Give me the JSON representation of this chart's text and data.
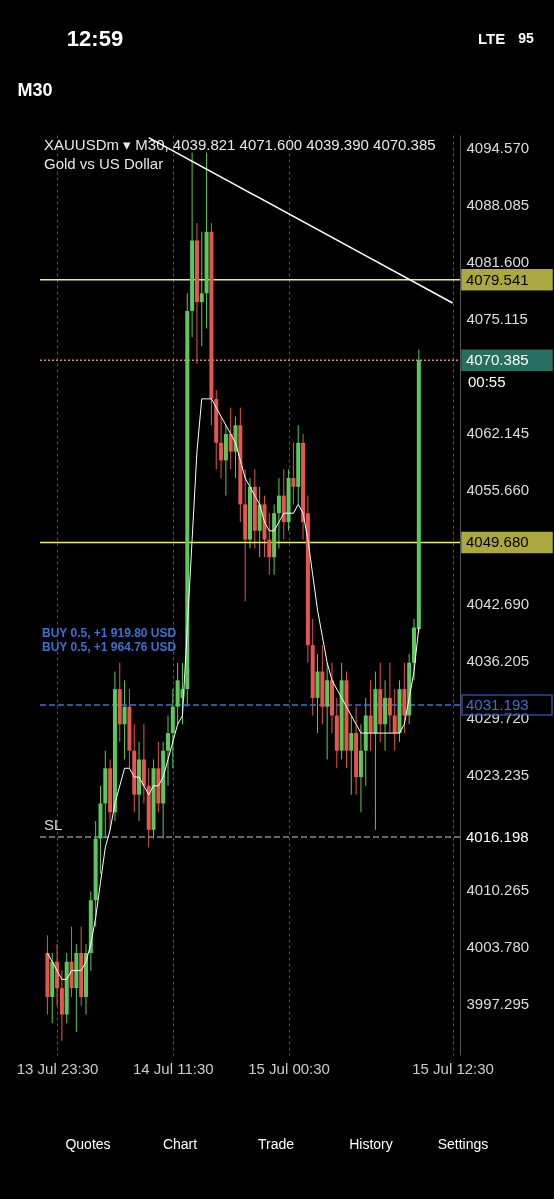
{
  "chart_data": {
    "type": "candlestick",
    "title": "XAUUSDm ▾ M30, 4039.821 4071.600 4039.390 4070.385",
    "subtitle": "Gold vs US Dollar",
    "categories": [
      null,
      null,
      "13 Jul 23:30",
      null,
      null,
      null,
      null,
      null,
      null,
      null,
      null,
      null,
      null,
      null,
      null,
      null,
      null,
      null,
      null,
      null,
      null,
      null,
      null,
      null,
      null,
      null,
      "14 Jul 11:30",
      null,
      null,
      null,
      null,
      null,
      null,
      null,
      null,
      null,
      null,
      null,
      null,
      null,
      null,
      null,
      null,
      null,
      null,
      null,
      null,
      null,
      null,
      null,
      "15 Jul 00:30",
      null,
      null,
      null,
      null,
      null,
      null,
      null,
      null,
      null,
      null,
      null,
      null,
      null,
      null,
      null,
      null,
      null,
      null,
      null,
      null,
      null,
      null,
      null,
      null,
      null,
      null,
      null,
      null,
      null,
      null,
      null,
      null,
      null,
      "15 Jul 12:30"
    ],
    "ohlc": [
      [
        4003,
        4005,
        3996,
        3998
      ],
      [
        3998,
        4003,
        3995,
        4002
      ],
      [
        4002,
        4004,
        3997,
        3999
      ],
      [
        3999,
        4001,
        3993,
        3996
      ],
      [
        3996,
        4003,
        3995,
        4002
      ],
      [
        4002,
        4006,
        3998,
        3999
      ],
      [
        3999,
        4004,
        3994,
        4003
      ],
      [
        4003,
        4006,
        3997,
        3998
      ],
      [
        3998,
        4004,
        3996,
        4003
      ],
      [
        4003,
        4010,
        4001,
        4009
      ],
      [
        4009,
        4018,
        4006,
        4016
      ],
      [
        4016,
        4022,
        4012,
        4020
      ],
      [
        4020,
        4026,
        4016,
        4024
      ],
      [
        4024,
        4025,
        4017,
        4019
      ],
      [
        4019,
        4035,
        4018,
        4033
      ],
      [
        4033,
        4036,
        4027,
        4029
      ],
      [
        4029,
        4034,
        4025,
        4031
      ],
      [
        4031,
        4033,
        4024,
        4026
      ],
      [
        4026,
        4029,
        4019,
        4021
      ],
      [
        4021,
        4027,
        4018,
        4025
      ],
      [
        4025,
        4029,
        4020,
        4022
      ],
      [
        4022,
        4024,
        4015,
        4017
      ],
      [
        4017,
        4025,
        4016,
        4024
      ],
      [
        4024,
        4027,
        4019,
        4020
      ],
      [
        4020,
        4027,
        4016,
        4026
      ],
      [
        4026,
        4030,
        4022,
        4028
      ],
      [
        4028,
        4033,
        4024,
        4031
      ],
      [
        4031,
        4036,
        4029,
        4034
      ],
      [
        4032,
        4036,
        4029,
        4033
      ],
      [
        4033,
        4078,
        4031,
        4076
      ],
      [
        4076,
        4094,
        4073,
        4084
      ],
      [
        4084,
        4086,
        4070,
        4077
      ],
      [
        4077,
        4085,
        4072,
        4078
      ],
      [
        4078,
        4094,
        4074,
        4085
      ],
      [
        4085,
        4086,
        4063,
        4066
      ],
      [
        4066,
        4067,
        4058,
        4061
      ],
      [
        4061,
        4064,
        4057,
        4059
      ],
      [
        4059,
        4063,
        4055,
        4062
      ],
      [
        4062,
        4065,
        4058,
        4060
      ],
      [
        4060,
        4064,
        4057,
        4063
      ],
      [
        4063,
        4065,
        4052,
        4054
      ],
      [
        4054,
        4058,
        4043,
        4050
      ],
      [
        4050,
        4057,
        4049,
        4056
      ],
      [
        4056,
        4058,
        4049,
        4051
      ],
      [
        4051,
        4056,
        4048,
        4054
      ],
      [
        4054,
        4055,
        4048,
        4050
      ],
      [
        4050,
        4053,
        4046,
        4048
      ],
      [
        4048,
        4054,
        4046,
        4053
      ],
      [
        4053,
        4057,
        4049,
        4055
      ],
      [
        4055,
        4058,
        4050,
        4052
      ],
      [
        4052,
        4058,
        4051,
        4057
      ],
      [
        4057,
        4061,
        4054,
        4056
      ],
      [
        4056,
        4063,
        4054,
        4061
      ],
      [
        4061,
        4062,
        4050,
        4052
      ],
      [
        4053,
        4055,
        4036,
        4038
      ],
      [
        4038,
        4041,
        4030,
        4032
      ],
      [
        4032,
        4037,
        4028,
        4035
      ],
      [
        4035,
        4038,
        4029,
        4031
      ],
      [
        4031,
        4036,
        4025,
        4034
      ],
      [
        4034,
        4036,
        4028,
        4030
      ],
      [
        4030,
        4032,
        4024,
        4026
      ],
      [
        4026,
        4036,
        4025,
        4034
      ],
      [
        4034,
        4035,
        4024,
        4026
      ],
      [
        4026,
        4030,
        4021,
        4028
      ],
      [
        4028,
        4031,
        4021,
        4023
      ],
      [
        4023,
        4029,
        4019,
        4026
      ],
      [
        4026,
        4032,
        4022,
        4030
      ],
      [
        4030,
        4034,
        4026,
        4028
      ],
      [
        4028,
        4035,
        4017,
        4033
      ],
      [
        4033,
        4036,
        4027,
        4029
      ],
      [
        4029,
        4034,
        4026,
        4032
      ],
      [
        4032,
        4036,
        4028,
        4030
      ],
      [
        4030,
        4033,
        4026,
        4028
      ],
      [
        4028,
        4034,
        4027,
        4033
      ],
      [
        4033,
        4036,
        4028,
        4030
      ],
      [
        4030,
        4037,
        4029,
        4036
      ],
      [
        4036,
        4041,
        4034,
        4040
      ],
      [
        4039.821,
        4071.6,
        4039.39,
        4070.385
      ],
      null,
      null,
      null,
      null,
      null,
      null,
      null
    ],
    "colors": [
      "#e4564e",
      "#5cc85c",
      "#e4564e",
      "#e4564e",
      "#5cc85c",
      "#e4564e",
      "#5cc85c",
      "#e4564e",
      "#5cc85c",
      "#5cc85c",
      "#5cc85c",
      "#5cc85c",
      "#5cc85c",
      "#e4564e",
      "#5cc85c",
      "#e4564e",
      "#5cc85c",
      "#e4564e",
      "#e4564e",
      "#5cc85c",
      "#e4564e",
      "#e4564e",
      "#5cc85c",
      "#e4564e",
      "#5cc85c",
      "#5cc85c",
      "#5cc85c",
      "#5cc85c",
      "#5cc85c",
      "#5cc85c",
      "#5cc85c",
      "#e4564e",
      "#5cc85c",
      "#5cc85c",
      "#e4564e",
      "#e4564e",
      "#e4564e",
      "#5cc85c",
      "#e4564e",
      "#5cc85c",
      "#e4564e",
      "#e4564e",
      "#5cc85c",
      "#e4564e",
      "#5cc85c",
      "#e4564e",
      "#e4564e",
      "#5cc85c",
      "#5cc85c",
      "#e4564e",
      "#5cc85c",
      "#e4564e",
      "#5cc85c",
      "#e4564e",
      "#e4564e",
      "#e4564e",
      "#5cc85c",
      "#e4564e",
      "#5cc85c",
      "#e4564e",
      "#e4564e",
      "#5cc85c",
      "#e4564e",
      "#5cc85c",
      "#e4564e",
      "#5cc85c",
      "#5cc85c",
      "#e4564e",
      "#5cc85c",
      "#e4564e",
      "#5cc85c",
      "#e4564e",
      "#e4564e",
      "#5cc85c",
      "#e4564e",
      "#5cc85c",
      "#5cc85c",
      "#5cc85c",
      null,
      null,
      null,
      null,
      null,
      null,
      null
    ],
    "series": [
      {
        "type": "line",
        "color": "#ffffff",
        "values": [
          4003,
          4002,
          4001,
          4000,
          4000,
          4001,
          4001,
          4001,
          4002,
          4004,
          4007,
          4011,
          4015,
          4017,
          4020,
          4022,
          4024,
          4024,
          4023,
          4023,
          4022,
          4021,
          4022,
          4022,
          4023,
          4025,
          4027,
          4029,
          4030,
          4040,
          4050,
          4060,
          4066,
          4066,
          4066,
          4065,
          4064,
          4063,
          4062,
          4061,
          4059,
          4057,
          4056,
          4055,
          4054,
          4052,
          4051,
          4051,
          4052,
          4053,
          4053,
          4053,
          4054,
          4053,
          4050,
          4046,
          4042,
          4039,
          4036,
          4034,
          4033,
          4032,
          4031,
          4030,
          4029,
          4028,
          4028,
          4028,
          4028,
          4028,
          4028,
          4028,
          4028,
          4028,
          4029,
          4032,
          4035,
          4040,
          null,
          null,
          null,
          null,
          null,
          null,
          null
        ]
      },
      {
        "type": "line",
        "color": "#ffffff",
        "values": [
          null,
          null,
          null,
          null,
          null,
          null,
          null,
          null,
          null,
          null,
          null,
          null,
          null,
          null,
          null,
          null,
          null,
          null,
          null,
          null,
          null,
          4095.7,
          null,
          null,
          null,
          null,
          null,
          null,
          null,
          null,
          null,
          null,
          null,
          null,
          null,
          null,
          null,
          null,
          null,
          null,
          null,
          null,
          null,
          null,
          null,
          null,
          null,
          null,
          null,
          null,
          null,
          null,
          null,
          null,
          null,
          null,
          null,
          null,
          null,
          null,
          null,
          null,
          null,
          null,
          null,
          null,
          null,
          null,
          null,
          null,
          null,
          null,
          null,
          null,
          null,
          null,
          null,
          null,
          null,
          null,
          null,
          null,
          null,
          null,
          4076.9
        ]
      }
    ],
    "ylim": [
      3991.4,
      4096.0
    ],
    "yticks": [
      {
        "value": 4094.57,
        "label": "4094.570"
      },
      {
        "value": 4088.085,
        "label": "4088.085"
      },
      {
        "value": 4081.6,
        "label": "4081.600"
      },
      {
        "value": 4075.115,
        "label": "4075.115"
      },
      {
        "value": 4062.145,
        "label": "4062.145"
      },
      {
        "value": 4055.66,
        "label": "4055.660"
      },
      {
        "value": 4042.69,
        "label": "4042.690"
      },
      {
        "value": 4036.205,
        "label": "4036.205"
      },
      {
        "value": 4029.72,
        "label": "4029.720"
      },
      {
        "value": 4023.235,
        "label": "4023.235"
      },
      {
        "value": 4010.265,
        "label": "4010.265"
      },
      {
        "value": 4003.78,
        "label": "4003.780"
      },
      {
        "value": 3997.295,
        "label": "3997.295"
      }
    ],
    "grid": "x",
    "ref_lines": [
      {
        "axis": "y",
        "value": 4079.541,
        "label": "4079.541",
        "color": "#f2ef5b",
        "line_style": "solid"
      },
      {
        "axis": "y",
        "value": 4049.68,
        "label": "4049.680",
        "color": "#f2ef5b",
        "line_style": "solid"
      },
      {
        "axis": "y",
        "value": 4070.385,
        "label": "4070.385",
        "color": "#d9897f",
        "line_style": "dotted"
      },
      {
        "axis": "y",
        "value": 4031.193,
        "label": "4031.193",
        "color": "#3d6fd6",
        "line_style": "dashed"
      },
      {
        "axis": "y",
        "value": 4016.198,
        "label": "4016.198",
        "color": "#8a8a8a",
        "line_style": "dashed"
      }
    ],
    "annotations": [
      "12:59",
      "LTE",
      "95",
      "M30",
      "00:55",
      {
        "text": "SL",
        "y": 4016.198
      },
      "BUY 0.5, +1 919.80 USD",
      "BUY 0.5, +1 964.76 USD",
      "Quotes",
      "Chart",
      "Trade",
      "History",
      "Settings"
    ]
  }
}
